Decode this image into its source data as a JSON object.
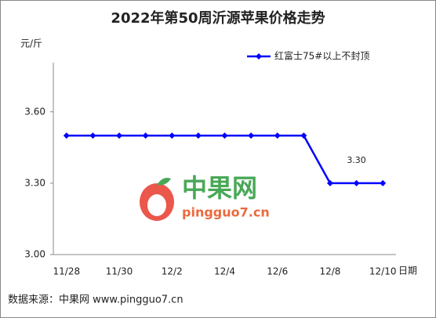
{
  "chart_data": {
    "type": "line",
    "title": "2022年第50周沂源苹果价格走势",
    "y_label": "元/斤",
    "x_label": "日期",
    "categories": [
      "11/28",
      null,
      "11/30",
      null,
      "12/2",
      null,
      "12/4",
      null,
      "12/6",
      null,
      "12/8",
      null,
      "12/10"
    ],
    "series": [
      {
        "name": "红富士75#以上不封顶",
        "color": "#0000ff",
        "values": [
          3.5,
          3.5,
          3.5,
          3.5,
          3.5,
          3.5,
          3.5,
          3.5,
          3.5,
          3.5,
          3.3,
          3.3,
          3.3
        ],
        "value_labels": [
          null,
          null,
          null,
          null,
          null,
          null,
          null,
          null,
          null,
          null,
          null,
          "3.30",
          null
        ]
      }
    ],
    "ylim": [
      3.0,
      3.8
    ],
    "yticks": [
      {
        "value": 3.0,
        "label": "3.00"
      },
      {
        "value": 3.3,
        "label": "3.30"
      },
      {
        "value": 3.6,
        "label": "3.60"
      }
    ],
    "grid": false,
    "legend": "top-right",
    "watermark": {
      "name": "中果网",
      "url": "pingguo7.cn"
    },
    "source": "数据来源：中果网 www.pingguo7.cn"
  }
}
